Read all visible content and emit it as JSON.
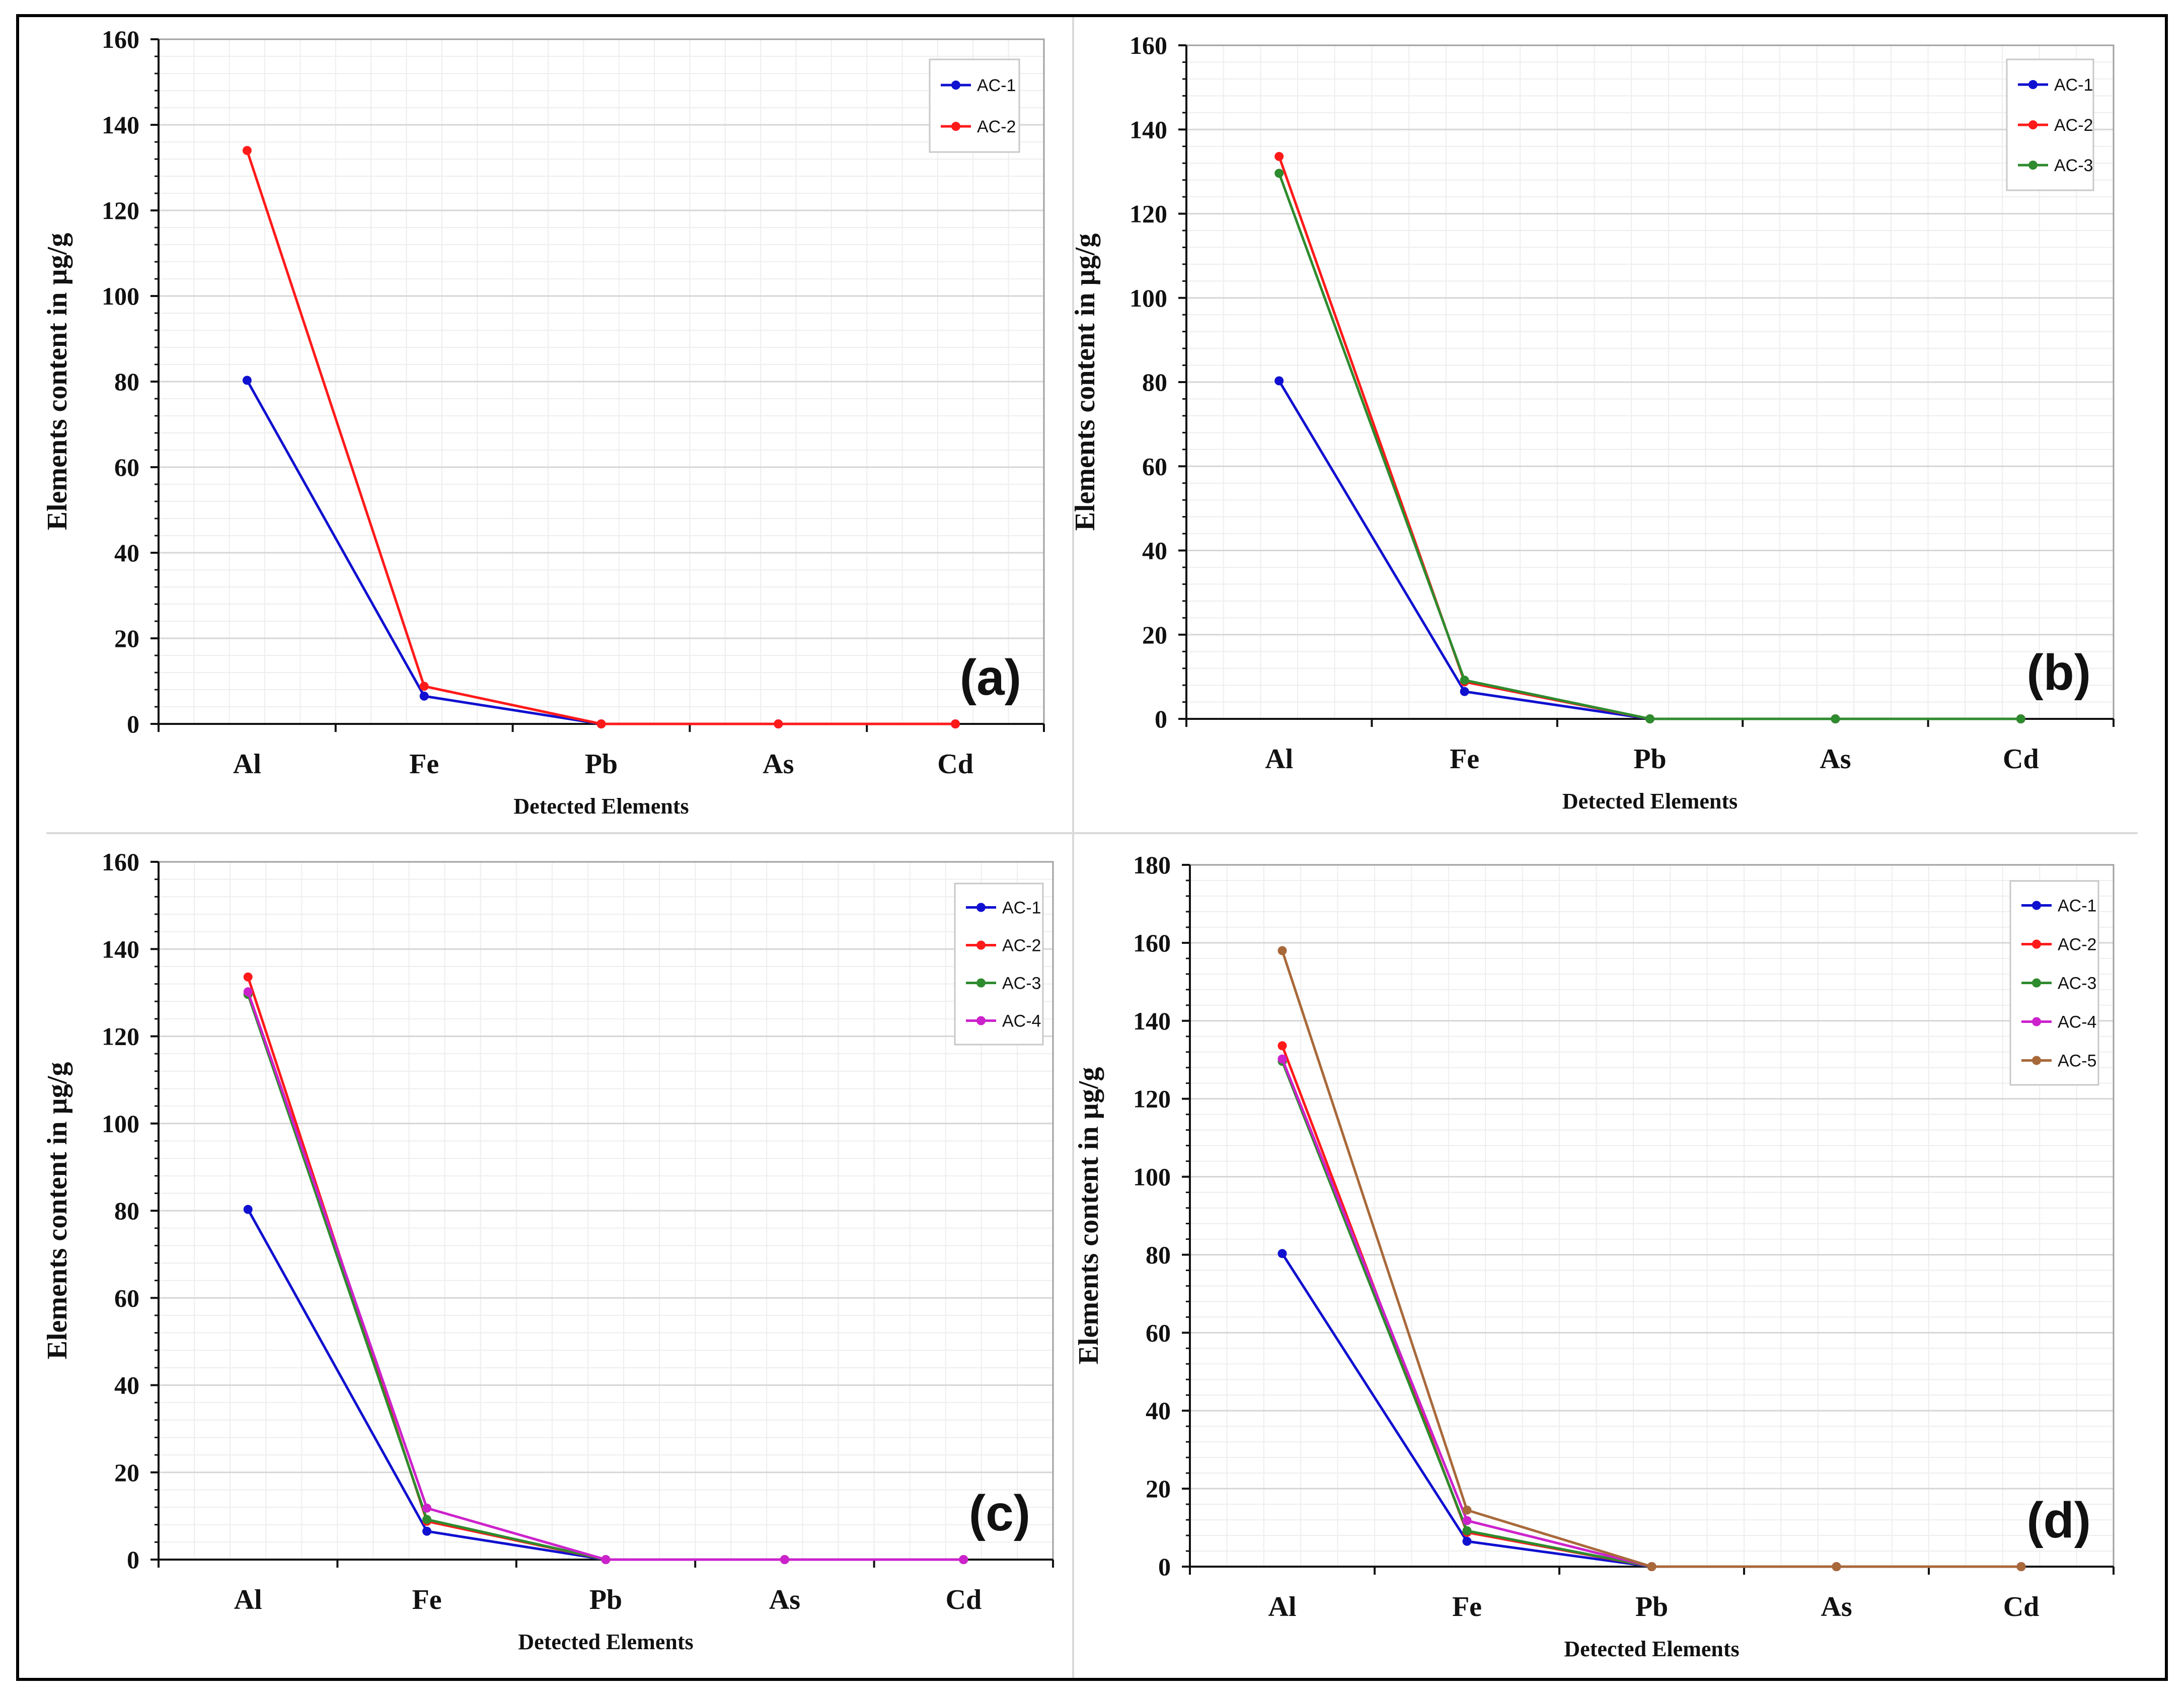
{
  "colors": {
    "AC-1": "#1010d0",
    "AC-2": "#ff1a1a",
    "AC-3": "#2e8b2e",
    "AC-4": "#cc22cc",
    "AC-5": "#a8693a"
  },
  "chart_data": [
    {
      "type": "line",
      "panel_label": "(a)",
      "categories": [
        "Al",
        "Fe",
        "Pb",
        "As",
        "Cd"
      ],
      "xlabel": "Detected Elements",
      "ylabel": "Elements content in µg/g",
      "ylim": [
        0,
        160
      ],
      "yticks": [
        0,
        20,
        40,
        60,
        80,
        100,
        120,
        140,
        160
      ],
      "grid": true,
      "legend": "top-right",
      "series": [
        {
          "name": "AC-1",
          "values": [
            80.3,
            6.5,
            0,
            0,
            0
          ]
        },
        {
          "name": "AC-2",
          "values": [
            134,
            8.8,
            0,
            0,
            0
          ]
        }
      ]
    },
    {
      "type": "line",
      "panel_label": "(b)",
      "categories": [
        "Al",
        "Fe",
        "Pb",
        "As",
        "Cd"
      ],
      "xlabel": "Detected Elements",
      "ylabel": "Elements content in µg/g",
      "ylim": [
        0,
        160
      ],
      "yticks": [
        0,
        20,
        40,
        60,
        80,
        100,
        120,
        140,
        160
      ],
      "grid": true,
      "legend": "top-right",
      "series": [
        {
          "name": "AC-1",
          "values": [
            80.3,
            6.5,
            0,
            0,
            0
          ]
        },
        {
          "name": "AC-2",
          "values": [
            133.6,
            8.8,
            0,
            0,
            0
          ]
        },
        {
          "name": "AC-3",
          "values": [
            129.6,
            9.2,
            0,
            0,
            0
          ]
        }
      ]
    },
    {
      "type": "line",
      "panel_label": "(c)",
      "categories": [
        "Al",
        "Fe",
        "Pb",
        "As",
        "Cd"
      ],
      "xlabel": "Detected Elements",
      "ylabel": "Elements content in µg/g",
      "ylim": [
        0,
        160
      ],
      "yticks": [
        0,
        20,
        40,
        60,
        80,
        100,
        120,
        140,
        160
      ],
      "grid": true,
      "legend": "top-right",
      "series": [
        {
          "name": "AC-1",
          "values": [
            80.3,
            6.5,
            0,
            0,
            0
          ]
        },
        {
          "name": "AC-2",
          "values": [
            133.6,
            8.8,
            0,
            0,
            0
          ]
        },
        {
          "name": "AC-3",
          "values": [
            129.6,
            9.2,
            0,
            0,
            0
          ]
        },
        {
          "name": "AC-4",
          "values": [
            130.2,
            11.8,
            0,
            0,
            0
          ]
        }
      ]
    },
    {
      "type": "line",
      "panel_label": "(d)",
      "categories": [
        "Al",
        "Fe",
        "Pb",
        "As",
        "Cd"
      ],
      "xlabel": "Detected Elements",
      "ylabel": "Elements content in µg/g",
      "ylim": [
        0,
        180
      ],
      "yticks": [
        0,
        20,
        40,
        60,
        80,
        100,
        120,
        140,
        160,
        180
      ],
      "grid": true,
      "legend": "top-right",
      "series": [
        {
          "name": "AC-1",
          "values": [
            80.3,
            6.5,
            0,
            0,
            0
          ]
        },
        {
          "name": "AC-2",
          "values": [
            133.6,
            8.8,
            0,
            0,
            0
          ]
        },
        {
          "name": "AC-3",
          "values": [
            129.6,
            9.2,
            0,
            0,
            0
          ]
        },
        {
          "name": "AC-4",
          "values": [
            130.2,
            11.8,
            0,
            0,
            0
          ]
        },
        {
          "name": "AC-5",
          "values": [
            158,
            14.5,
            0,
            0,
            0
          ]
        }
      ]
    }
  ]
}
